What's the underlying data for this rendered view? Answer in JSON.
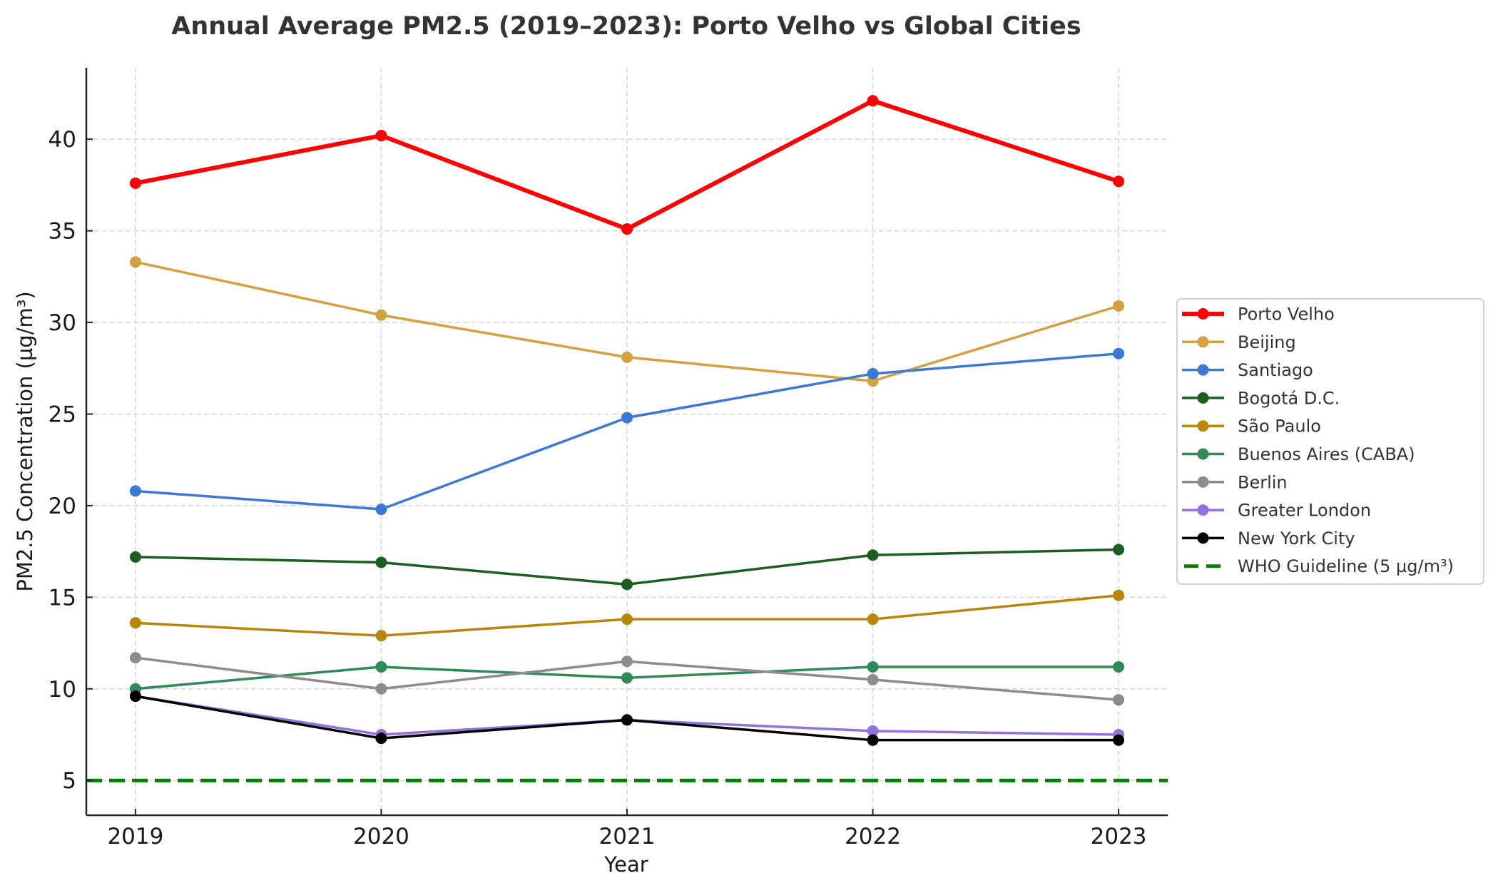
{
  "chart_data": {
    "type": "line",
    "title": "Annual Average PM2.5 (2019–2023): Porto Velho vs Global Cities",
    "xlabel": "Year",
    "ylabel": "PM2.5 Concentration (µg/m³)",
    "x": [
      2019,
      2020,
      2021,
      2022,
      2023
    ],
    "x_tick_labels": [
      "2019",
      "2020",
      "2021",
      "2022",
      "2023"
    ],
    "xlim": [
      2018.8,
      2023.2
    ],
    "ylim": [
      3.1,
      43.9
    ],
    "y_ticks": [
      5,
      10,
      15,
      20,
      25,
      30,
      35,
      40
    ],
    "y_tick_labels": [
      "5",
      "10",
      "15",
      "20",
      "25",
      "30",
      "35",
      "40"
    ],
    "grid": true,
    "legend_position": "center-right-outside",
    "series": [
      {
        "name": "Porto Velho",
        "color": "#ff0000",
        "emphasis": true,
        "values": [
          37.6,
          40.2,
          35.1,
          42.1,
          37.7
        ]
      },
      {
        "name": "Beijing",
        "color": "#d4a040",
        "emphasis": false,
        "values": [
          33.3,
          30.4,
          28.1,
          26.8,
          30.9
        ]
      },
      {
        "name": "Santiago",
        "color": "#3c78d8",
        "emphasis": false,
        "values": [
          20.8,
          19.8,
          24.8,
          27.2,
          28.3
        ]
      },
      {
        "name": "Bogotá D.C.",
        "color": "#1b5e20",
        "emphasis": false,
        "values": [
          17.2,
          16.9,
          15.7,
          17.3,
          17.6
        ]
      },
      {
        "name": "São Paulo",
        "color": "#b8860b",
        "emphasis": false,
        "values": [
          13.6,
          12.9,
          13.8,
          13.8,
          15.1
        ]
      },
      {
        "name": "Buenos Aires (CABA)",
        "color": "#2e8b57",
        "emphasis": false,
        "values": [
          10.0,
          11.2,
          10.6,
          11.2,
          11.2
        ]
      },
      {
        "name": "Berlin",
        "color": "#8c8c8c",
        "emphasis": false,
        "values": [
          11.7,
          10.0,
          11.5,
          10.5,
          9.4
        ]
      },
      {
        "name": "Greater London",
        "color": "#9370db",
        "emphasis": false,
        "values": [
          9.6,
          7.5,
          8.3,
          7.7,
          7.5
        ]
      },
      {
        "name": "New York City",
        "color": "#000000",
        "emphasis": false,
        "values": [
          9.6,
          7.3,
          8.3,
          7.2,
          7.2
        ]
      }
    ],
    "reference_lines": [
      {
        "name": "WHO Guideline (5 µg/m³)",
        "value": 5,
        "color": "#008000",
        "style": "dashed"
      }
    ]
  }
}
